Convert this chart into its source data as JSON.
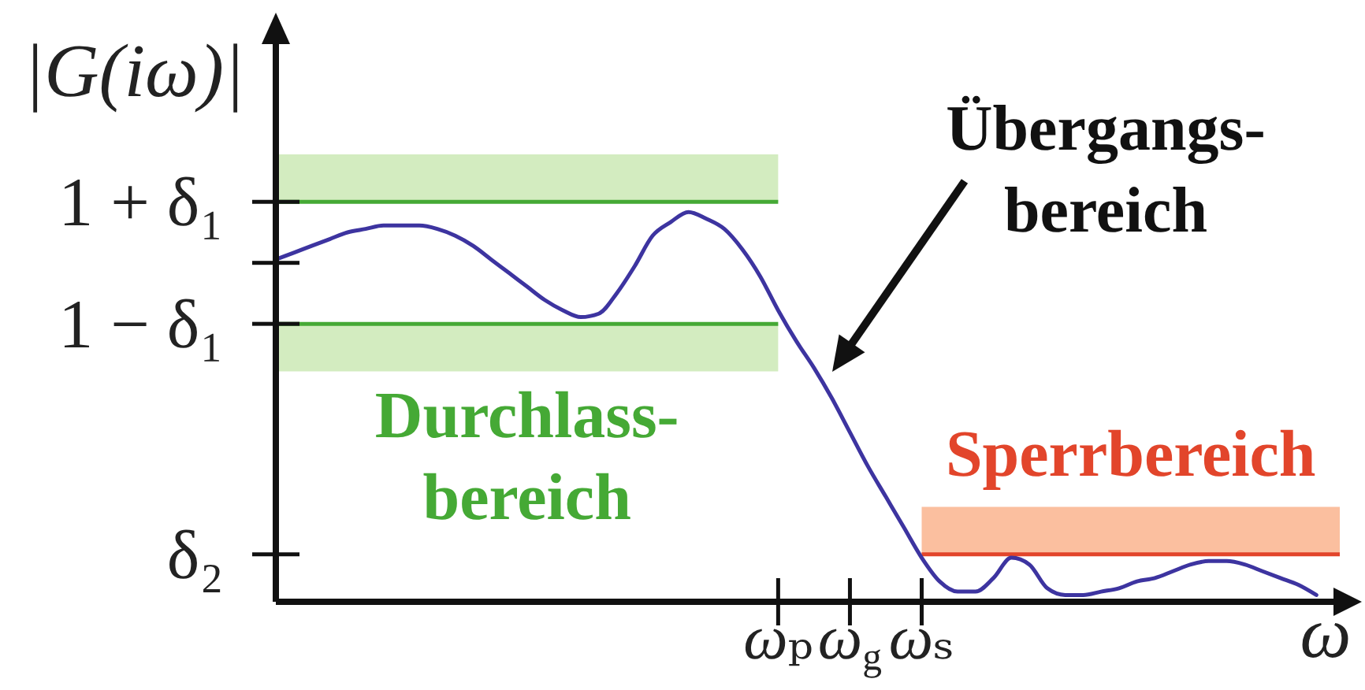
{
  "chart_data": {
    "type": "line",
    "xlabel": "ω",
    "ylabel": "|G(iω)|",
    "categories": [
      null,
      null,
      null,
      null,
      null,
      null,
      null,
      null,
      null,
      null,
      null,
      null,
      null,
      null,
      null,
      null,
      null,
      null,
      null,
      null,
      null,
      null,
      null,
      null,
      null,
      null,
      null,
      null,
      "ωₚ",
      null,
      null,
      null,
      "ω$_{g}$",
      null,
      null,
      null,
      "ωₛ",
      null,
      null,
      null,
      null,
      null,
      null,
      null,
      null,
      null,
      null,
      null,
      null,
      null,
      null,
      null,
      null,
      null,
      null,
      null,
      null,
      null,
      null
    ],
    "series": [
      {
        "color": "#3d34a0",
        "values": [
          1.01,
          1.03,
          1.05,
          1.07,
          1.09,
          1.1,
          1.11,
          1.11,
          1.11,
          1.1,
          1.08,
          1.05,
          1.01,
          0.97,
          0.93,
          0.89,
          0.86,
          0.84,
          0.85,
          0.91,
          0.99,
          1.08,
          1.12,
          1.15,
          1.13,
          1.1,
          1.04,
          0.96,
          0.86,
          0.77,
          0.69,
          0.6,
          0.5,
          0.4,
          0.31,
          0.22,
          0.13,
          0.06,
          0.03,
          0.03,
          0.07,
          0.13,
          0.11,
          0.04,
          0.02,
          0.02,
          0.03,
          0.04,
          0.06,
          0.07,
          0.09,
          0.11,
          0.12,
          0.12,
          0.11,
          0.09,
          0.07,
          0.05,
          0.02
        ]
      }
    ],
    "ylim": [
      0,
      1.65
    ],
    "yticks": [
      {
        "value": 1.18,
        "label": "1 + δ₁"
      },
      {
        "value": 1,
        "label": null
      },
      {
        "value": 0.82,
        "label": "1 − δ₁"
      },
      {
        "value": 0.14,
        "label": "δ₂"
      }
    ],
    "ref_lines": [
      {
        "axis": "y",
        "value": 1.18,
        "color": "#45a935"
      },
      {
        "axis": "y",
        "value": 0.82,
        "color": "#45a935"
      },
      {
        "axis": "y",
        "value": 0.14,
        "color": "#e2452b"
      }
    ],
    "bands": [
      {
        "axis": "y",
        "from": 1.18,
        "to": 1.32,
        "color": "#d3ecc0"
      },
      {
        "axis": "y",
        "from": 0.68,
        "to": 0.82,
        "color": "#d3ecc0",
        "label": "Durchlass-bereich"
      },
      {
        "axis": "y",
        "from": 0.14,
        "to": 0.28,
        "color": "#fbbf9f",
        "label": "Sperrbereich"
      }
    ],
    "annotations": [
      "Übergangs-bereich"
    ],
    "marker": "none",
    "line_style": "solid"
  }
}
